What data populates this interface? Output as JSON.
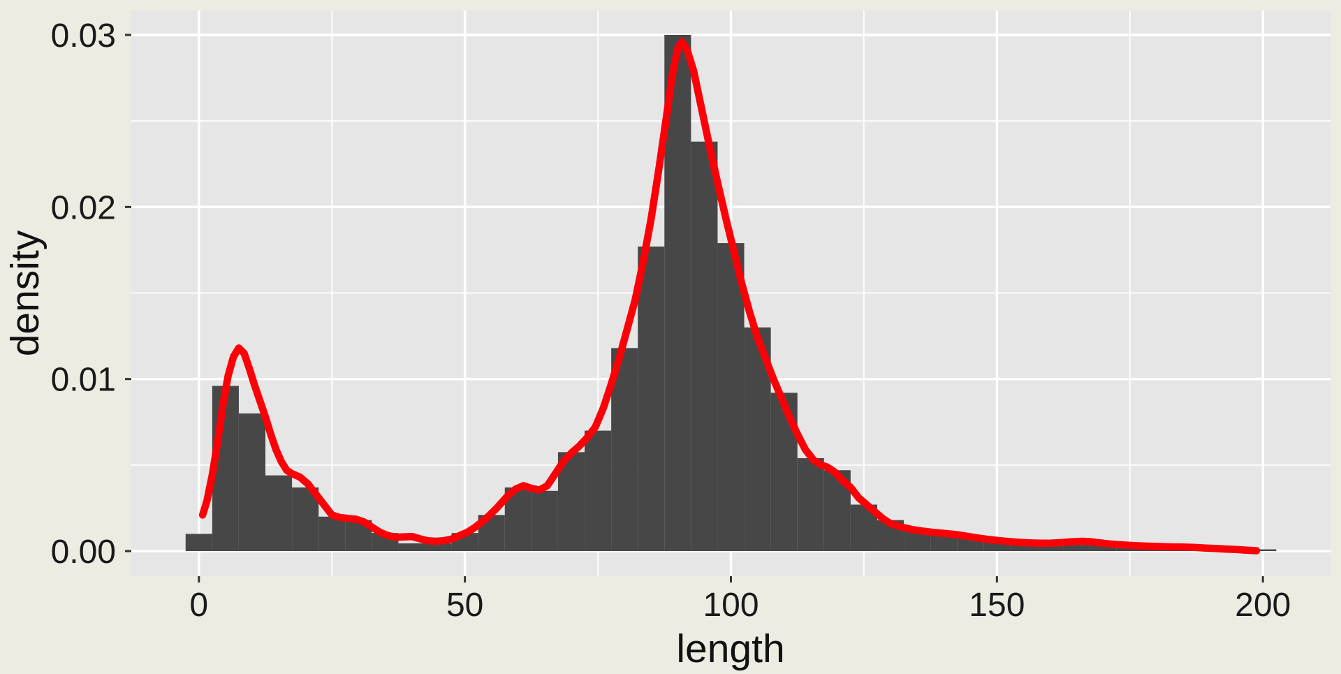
{
  "chart_data": {
    "type": "bar",
    "subtype": "histogram-with-density-curve",
    "title": "",
    "xlabel": "length",
    "ylabel": "density",
    "legend": null,
    "grid": "on",
    "xlim": [
      -12.706,
      212.706
    ],
    "ylim": [
      -0.001461,
      0.031421
    ],
    "x_ticks": [
      0,
      50,
      100,
      150,
      200
    ],
    "x_tick_labels": [
      "0",
      "50",
      "100",
      "150",
      "200"
    ],
    "y_ticks": [
      0,
      0.01,
      0.02,
      0.03
    ],
    "y_tick_labels": [
      "0.00",
      "0.01",
      "0.02",
      "0.03"
    ],
    "x_minor": [
      25,
      75,
      125,
      175
    ],
    "y_minor": [
      0.005,
      0.015,
      0.025
    ],
    "bin_width": 5,
    "bin_centers": [
      0,
      5,
      10,
      15,
      20,
      25,
      30,
      35,
      40,
      45,
      50,
      55,
      60,
      65,
      70,
      75,
      80,
      85,
      90,
      95,
      100,
      105,
      110,
      115,
      120,
      125,
      130,
      135,
      140,
      145,
      150,
      155,
      160,
      165,
      170,
      175,
      180,
      185,
      190,
      195,
      200
    ],
    "bin_densities": [
      0.001,
      0.0096,
      0.008,
      0.0044,
      0.0037,
      0.002,
      0.0018,
      0.00105,
      0.00045,
      0.00045,
      0.00105,
      0.0021,
      0.0037,
      0.0035,
      0.00575,
      0.007,
      0.0118,
      0.0177,
      0.03,
      0.0238,
      0.0179,
      0.013,
      0.0092,
      0.0054,
      0.0047,
      0.0027,
      0.0018,
      0.00126,
      0.00105,
      0.00078,
      0.00064,
      0.0004,
      0.00037,
      0.00035,
      0.00035,
      0.00032,
      0.00025,
      0.0002,
      0.00015,
      0.0001,
      0.0001
    ],
    "density_curve": [
      [
        0.7,
        0.0021
      ],
      [
        1.5,
        0.0029
      ],
      [
        2.5,
        0.0044
      ],
      [
        3.5,
        0.0063
      ],
      [
        4.5,
        0.0085
      ],
      [
        5.5,
        0.0102
      ],
      [
        6.5,
        0.0113
      ],
      [
        7.5,
        0.0118
      ],
      [
        8.5,
        0.0115
      ],
      [
        9.5,
        0.0106
      ],
      [
        10.5,
        0.0096
      ],
      [
        11.5,
        0.0087
      ],
      [
        12.5,
        0.0078
      ],
      [
        13.5,
        0.0068
      ],
      [
        14.5,
        0.0059
      ],
      [
        15.5,
        0.0052
      ],
      [
        16.5,
        0.0047
      ],
      [
        17.5,
        0.0045
      ],
      [
        19,
        0.0043
      ],
      [
        20.5,
        0.0039
      ],
      [
        22,
        0.0033
      ],
      [
        23.5,
        0.0027
      ],
      [
        25,
        0.0021
      ],
      [
        26.5,
        0.00195
      ],
      [
        28,
        0.0019
      ],
      [
        29.5,
        0.00185
      ],
      [
        31,
        0.0017
      ],
      [
        32.5,
        0.0014
      ],
      [
        34,
        0.0011
      ],
      [
        35.5,
        0.0009
      ],
      [
        37,
        0.0008
      ],
      [
        38.5,
        0.00082
      ],
      [
        40,
        0.00085
      ],
      [
        41.5,
        0.00072
      ],
      [
        43,
        0.0006
      ],
      [
        44.5,
        0.00057
      ],
      [
        46,
        0.0006
      ],
      [
        47.5,
        0.0007
      ],
      [
        49,
        0.0009
      ],
      [
        50.5,
        0.0011
      ],
      [
        52,
        0.0014
      ],
      [
        54,
        0.0019
      ],
      [
        56,
        0.0025
      ],
      [
        58,
        0.0032
      ],
      [
        59.5,
        0.0036
      ],
      [
        61,
        0.0038
      ],
      [
        62.5,
        0.00365
      ],
      [
        64,
        0.00355
      ],
      [
        65.5,
        0.0038
      ],
      [
        67,
        0.0045
      ],
      [
        68.5,
        0.0052
      ],
      [
        70,
        0.0057
      ],
      [
        71.5,
        0.0061
      ],
      [
        73,
        0.0066
      ],
      [
        74.5,
        0.0072
      ],
      [
        76,
        0.0083
      ],
      [
        77.5,
        0.0097
      ],
      [
        79,
        0.0112
      ],
      [
        80.5,
        0.0129
      ],
      [
        82,
        0.0146
      ],
      [
        83.5,
        0.0168
      ],
      [
        85,
        0.0193
      ],
      [
        86.5,
        0.0223
      ],
      [
        88,
        0.0255
      ],
      [
        89,
        0.0277
      ],
      [
        90,
        0.0292
      ],
      [
        90.8,
        0.0296
      ],
      [
        91.8,
        0.0291
      ],
      [
        93,
        0.0279
      ],
      [
        94.5,
        0.0257
      ],
      [
        96,
        0.0235
      ],
      [
        97.5,
        0.0214
      ],
      [
        99,
        0.0194
      ],
      [
        100.5,
        0.0175
      ],
      [
        102,
        0.0156
      ],
      [
        103.5,
        0.0139
      ],
      [
        105,
        0.0124
      ],
      [
        106.5,
        0.0112
      ],
      [
        108,
        0.01
      ],
      [
        109.5,
        0.0089
      ],
      [
        111,
        0.0078
      ],
      [
        112.5,
        0.0068
      ],
      [
        114,
        0.0059
      ],
      [
        115.5,
        0.0053
      ],
      [
        117,
        0.005
      ],
      [
        118,
        0.0049
      ],
      [
        119.5,
        0.0046
      ],
      [
        121,
        0.0041
      ],
      [
        122.5,
        0.0037
      ],
      [
        124,
        0.0031
      ],
      [
        125.5,
        0.0027
      ],
      [
        127,
        0.0023
      ],
      [
        128.5,
        0.0019
      ],
      [
        130,
        0.0016
      ],
      [
        132,
        0.0014
      ],
      [
        134,
        0.00126
      ],
      [
        136,
        0.00116
      ],
      [
        138,
        0.00109
      ],
      [
        140,
        0.00103
      ],
      [
        142,
        0.00097
      ],
      [
        144,
        0.00088
      ],
      [
        146,
        0.00078
      ],
      [
        148,
        0.00069
      ],
      [
        150,
        0.00062
      ],
      [
        152,
        0.00056
      ],
      [
        154,
        0.00051
      ],
      [
        156,
        0.00048
      ],
      [
        158,
        0.00046
      ],
      [
        160,
        0.00046
      ],
      [
        162,
        0.00049
      ],
      [
        164,
        0.00054
      ],
      [
        166,
        0.00057
      ],
      [
        167.5,
        0.00055
      ],
      [
        169,
        0.00049
      ],
      [
        171,
        0.00042
      ],
      [
        173,
        0.00037
      ],
      [
        175,
        0.00033
      ],
      [
        177,
        0.0003
      ],
      [
        179,
        0.00028
      ],
      [
        181,
        0.00026
      ],
      [
        183,
        0.00024
      ],
      [
        185,
        0.00023
      ],
      [
        187,
        0.00021
      ],
      [
        189,
        0.00018
      ],
      [
        191,
        0.00015
      ],
      [
        193,
        0.00012
      ],
      [
        195,
        9e-05
      ],
      [
        197,
        5e-05
      ],
      [
        198.8,
        2e-05
      ]
    ],
    "colors": {
      "background": "#ECECE3",
      "panel": "#E6E6E6",
      "bar": "#474747",
      "curve": "#FB0006",
      "grid": "#FFFFFF",
      "tick": "#333333",
      "text": "#1A1A1A"
    }
  }
}
